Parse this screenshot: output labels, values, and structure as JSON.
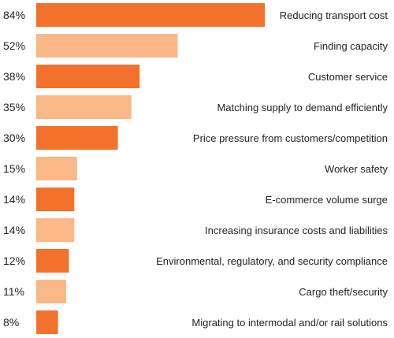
{
  "chart_data": {
    "type": "bar",
    "orientation": "horizontal",
    "title": "",
    "xlabel": "",
    "ylabel": "",
    "xlim": [
      0,
      84
    ],
    "grid": false,
    "legend": "none",
    "value_suffix": "%",
    "colors": {
      "dark": "#F2722B",
      "light": "#F9B886"
    },
    "bar_color_pattern": [
      "dark",
      "light"
    ],
    "categories": [
      "Reducing transport cost",
      "Finding capacity",
      "Customer service",
      "Matching supply to demand efficiently",
      "Price pressure from customers/competition",
      "Worker safety",
      "E-commerce volume surge",
      "Increasing insurance costs and liabilities",
      "Environmental, regulatory, and security compliance",
      "Cargo theft/security",
      "Migrating to intermodal and/or rail solutions"
    ],
    "values": [
      84,
      52,
      38,
      35,
      30,
      15,
      14,
      14,
      12,
      11,
      8
    ],
    "value_labels": [
      "84%",
      "52%",
      "38%",
      "35%",
      "30%",
      "15%",
      "14%",
      "14%",
      "12%",
      "11%",
      "8%"
    ]
  }
}
